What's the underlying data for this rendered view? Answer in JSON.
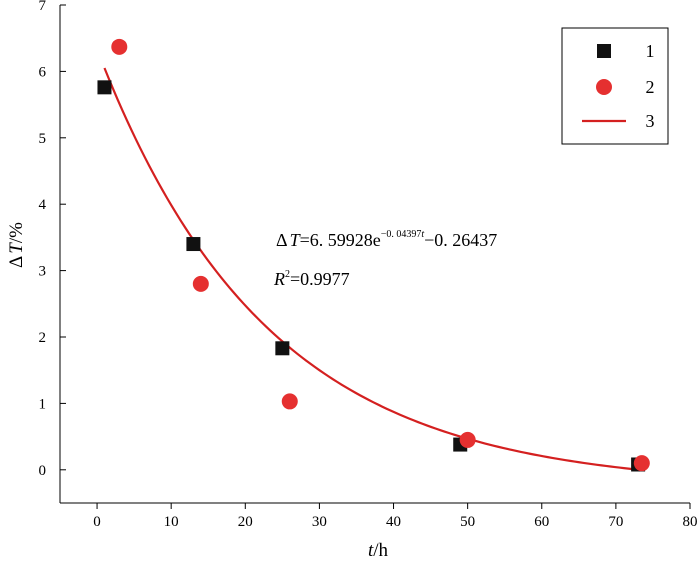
{
  "chart_data": {
    "type": "scatter",
    "xlabel": "t/h",
    "ylabel": "ΔT/%",
    "xlim": [
      -5,
      80
    ],
    "ylim": [
      -0.5,
      7
    ],
    "x_ticks": [
      0,
      10,
      20,
      30,
      40,
      50,
      60,
      70,
      80
    ],
    "y_ticks": [
      0,
      1,
      2,
      3,
      4,
      5,
      6,
      7
    ],
    "grid": false,
    "legend_position": "top-right",
    "series": [
      {
        "name": "1",
        "kind": "scatter",
        "marker": "square",
        "color": "#111111",
        "x": [
          1,
          13,
          25,
          49,
          73
        ],
        "y": [
          5.76,
          3.4,
          1.83,
          0.38,
          0.08
        ]
      },
      {
        "name": "2",
        "kind": "scatter",
        "marker": "circle",
        "color": "#e53030",
        "x": [
          3,
          14,
          26,
          50,
          73.5
        ],
        "y": [
          6.37,
          2.8,
          1.03,
          0.45,
          0.1
        ]
      },
      {
        "name": "3",
        "kind": "line",
        "color": "#d42020",
        "fit": {
          "a": 6.59928,
          "b": -0.04397,
          "c": -0.26437,
          "x_range": [
            1,
            73.5
          ]
        }
      }
    ],
    "annotations": {
      "equation": {
        "lhs": "ΔT=6.59928e",
        "exponent": "−0.04397t",
        "rhs": "−0.26437"
      },
      "r_squared": {
        "label": "R",
        "sup": "2",
        "value": "=0.9977"
      }
    }
  }
}
